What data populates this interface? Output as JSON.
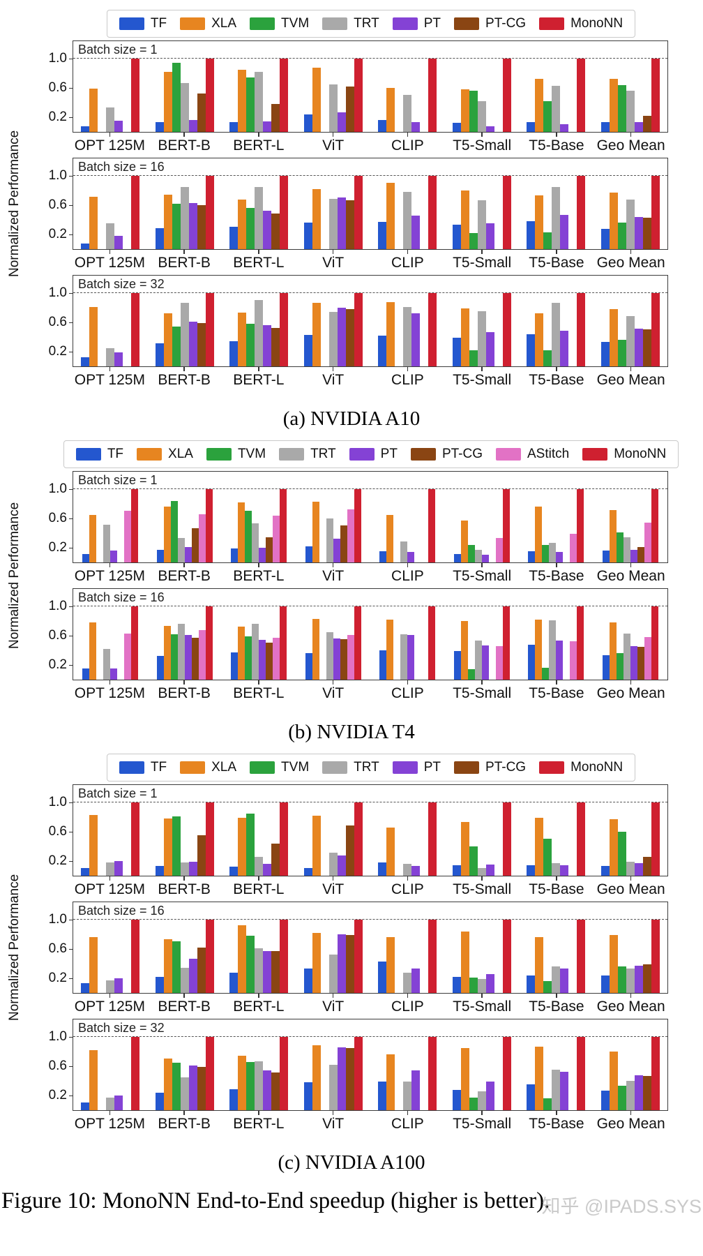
{
  "figure": {
    "caption": "Figure 10: MonoNN End-to-End speedup (higher is better).",
    "watermark": "知乎 @IPADS.SYS"
  },
  "colors": {
    "TF": "#2457cf",
    "XLA": "#e78520",
    "TVM": "#2ba23d",
    "TRT": "#a9a9a9",
    "PT": "#8442d5",
    "PT-CG": "#8a4513",
    "AStitch": "#e272c5",
    "MonoNN": "#cf2030"
  },
  "chart_data": [
    {
      "type": "bar",
      "caption": "(a) NVIDIA A10",
      "ylabel": "Normalized Performance",
      "yticks": [
        0.2,
        0.6,
        1.0
      ],
      "ylim": [
        0,
        1.24
      ],
      "grid_dashed_at": 1.0,
      "legend_position": "top",
      "series_names": [
        "TF",
        "XLA",
        "TVM",
        "TRT",
        "PT",
        "PT-CG",
        "MonoNN"
      ],
      "categories": [
        "OPT 125M",
        "BERT-B",
        "BERT-L",
        "ViT",
        "CLIP",
        "T5-Small",
        "T5-Base",
        "Geo Mean"
      ],
      "panels": [
        {
          "label": "Batch size = 1",
          "series": [
            {
              "name": "TF",
              "values": [
                0.08,
                0.13,
                0.13,
                0.24,
                0.16,
                0.12,
                0.13,
                0.13
              ]
            },
            {
              "name": "XLA",
              "values": [
                0.59,
                0.82,
                0.85,
                0.88,
                0.6,
                0.58,
                0.72,
                0.72
              ]
            },
            {
              "name": "TVM",
              "values": [
                null,
                0.94,
                0.74,
                null,
                null,
                0.56,
                0.42,
                0.64
              ]
            },
            {
              "name": "TRT",
              "values": [
                0.33,
                0.67,
                0.82,
                0.65,
                0.5,
                0.42,
                0.63,
                0.56
              ]
            },
            {
              "name": "PT",
              "values": [
                0.15,
                0.16,
                0.14,
                0.27,
                0.13,
                0.08,
                0.1,
                0.13
              ]
            },
            {
              "name": "PT-CG",
              "values": [
                null,
                0.52,
                0.38,
                0.62,
                null,
                null,
                null,
                0.22
              ]
            },
            {
              "name": "MonoNN",
              "values": [
                1.0,
                1.0,
                1.0,
                1.0,
                1.0,
                1.0,
                1.0,
                1.0
              ]
            }
          ]
        },
        {
          "label": "Batch size = 16",
          "series": [
            {
              "name": "TF",
              "values": [
                0.08,
                0.29,
                0.3,
                0.36,
                0.37,
                0.33,
                0.38,
                0.28
              ]
            },
            {
              "name": "XLA",
              "values": [
                0.71,
                0.74,
                0.68,
                0.82,
                0.9,
                0.8,
                0.73,
                0.77
              ]
            },
            {
              "name": "TVM",
              "values": [
                null,
                0.62,
                0.56,
                null,
                null,
                0.22,
                0.23,
                0.36
              ]
            },
            {
              "name": "TRT",
              "values": [
                0.35,
                0.85,
                0.85,
                0.69,
                0.78,
                0.67,
                0.85,
                0.68
              ]
            },
            {
              "name": "PT",
              "values": [
                0.18,
                0.63,
                0.52,
                0.7,
                0.46,
                0.35,
                0.47,
                0.44
              ]
            },
            {
              "name": "PT-CG",
              "values": [
                null,
                0.6,
                0.49,
                0.67,
                null,
                null,
                null,
                0.43
              ]
            },
            {
              "name": "MonoNN",
              "values": [
                1.0,
                1.0,
                1.0,
                1.0,
                1.0,
                1.0,
                1.0,
                1.0
              ]
            }
          ]
        },
        {
          "label": "Batch size = 32",
          "series": [
            {
              "name": "TF",
              "values": [
                0.12,
                0.31,
                0.34,
                0.43,
                0.42,
                0.39,
                0.44,
                0.33
              ]
            },
            {
              "name": "XLA",
              "values": [
                0.81,
                0.72,
                0.73,
                0.87,
                0.88,
                0.79,
                0.72,
                0.78
              ]
            },
            {
              "name": "TVM",
              "values": [
                null,
                0.54,
                0.58,
                null,
                null,
                0.22,
                0.22,
                0.36
              ]
            },
            {
              "name": "TRT",
              "values": [
                0.25,
                0.87,
                0.9,
                0.74,
                0.81,
                0.75,
                0.87,
                0.69
              ]
            },
            {
              "name": "PT",
              "values": [
                0.19,
                0.61,
                0.56,
                0.8,
                0.72,
                0.47,
                0.49,
                0.51
              ]
            },
            {
              "name": "PT-CG",
              "values": [
                null,
                0.59,
                0.52,
                0.78,
                null,
                null,
                null,
                0.5
              ]
            },
            {
              "name": "MonoNN",
              "values": [
                1.0,
                1.0,
                1.0,
                1.0,
                1.0,
                1.0,
                1.0,
                1.0
              ]
            }
          ]
        }
      ]
    },
    {
      "type": "bar",
      "caption": "(b) NVIDIA T4",
      "ylabel": "Normalized Performance",
      "yticks": [
        0.2,
        0.6,
        1.0
      ],
      "ylim": [
        0,
        1.24
      ],
      "grid_dashed_at": 1.0,
      "legend_position": "top",
      "series_names": [
        "TF",
        "XLA",
        "TVM",
        "TRT",
        "PT",
        "PT-CG",
        "AStitch",
        "MonoNN"
      ],
      "categories": [
        "OPT 125M",
        "BERT-B",
        "BERT-L",
        "ViT",
        "CLIP",
        "T5-Small",
        "T5-Base",
        "Geo Mean"
      ],
      "panels": [
        {
          "label": "Batch size = 1",
          "series": [
            {
              "name": "TF",
              "values": [
                0.11,
                0.17,
                0.19,
                0.22,
                0.15,
                0.11,
                0.15,
                0.16
              ]
            },
            {
              "name": "XLA",
              "values": [
                0.65,
                0.76,
                0.82,
                0.83,
                0.65,
                0.57,
                0.76,
                0.71
              ]
            },
            {
              "name": "TVM",
              "values": [
                null,
                0.84,
                0.7,
                null,
                null,
                0.24,
                0.24,
                0.41
              ]
            },
            {
              "name": "TRT",
              "values": [
                0.51,
                0.33,
                0.53,
                0.6,
                0.29,
                0.17,
                0.27,
                0.34
              ]
            },
            {
              "name": "PT",
              "values": [
                0.16,
                0.21,
                0.2,
                0.32,
                0.14,
                0.1,
                0.14,
                0.17
              ]
            },
            {
              "name": "PT-CG",
              "values": [
                null,
                0.47,
                0.34,
                0.5,
                null,
                null,
                null,
                0.21
              ]
            },
            {
              "name": "AStitch",
              "values": [
                0.7,
                0.66,
                0.64,
                0.72,
                null,
                0.33,
                0.39,
                0.54
              ]
            },
            {
              "name": "MonoNN",
              "values": [
                1.0,
                1.0,
                1.0,
                1.0,
                1.0,
                1.0,
                1.0,
                1.0
              ]
            }
          ]
        },
        {
          "label": "Batch size = 16",
          "series": [
            {
              "name": "TF",
              "values": [
                0.15,
                0.32,
                0.37,
                0.36,
                0.4,
                0.39,
                0.48,
                0.33
              ]
            },
            {
              "name": "XLA",
              "values": [
                0.78,
                0.73,
                0.72,
                0.83,
                0.82,
                0.8,
                0.82,
                0.78
              ]
            },
            {
              "name": "TVM",
              "values": [
                null,
                0.62,
                0.59,
                null,
                null,
                0.14,
                0.16,
                0.36
              ]
            },
            {
              "name": "TRT",
              "values": [
                0.42,
                0.76,
                0.76,
                0.65,
                0.62,
                0.53,
                0.81,
                0.63
              ]
            },
            {
              "name": "PT",
              "values": [
                0.15,
                0.61,
                0.54,
                0.56,
                0.61,
                0.47,
                0.53,
                0.46
              ]
            },
            {
              "name": "PT-CG",
              "values": [
                null,
                0.57,
                0.5,
                0.55,
                null,
                null,
                null,
                0.45
              ]
            },
            {
              "name": "AStitch",
              "values": [
                0.63,
                0.68,
                0.57,
                0.61,
                null,
                0.46,
                0.52,
                0.58
              ]
            },
            {
              "name": "MonoNN",
              "values": [
                1.0,
                1.0,
                1.0,
                1.0,
                1.0,
                1.0,
                1.0,
                1.0
              ]
            }
          ]
        }
      ]
    },
    {
      "type": "bar",
      "caption": "(c) NVIDIA A100",
      "ylabel": "Normalized Performance",
      "yticks": [
        0.2,
        0.6,
        1.0
      ],
      "ylim": [
        0,
        1.24
      ],
      "grid_dashed_at": 1.0,
      "legend_position": "top",
      "series_names": [
        "TF",
        "XLA",
        "TVM",
        "TRT",
        "PT",
        "PT-CG",
        "MonoNN"
      ],
      "categories": [
        "OPT 125M",
        "BERT-B",
        "BERT-L",
        "ViT",
        "CLIP",
        "T5-Small",
        "T5-Base",
        "Geo Mean"
      ],
      "panels": [
        {
          "label": "Batch size = 1",
          "series": [
            {
              "name": "TF",
              "values": [
                0.1,
                0.13,
                0.12,
                0.1,
                0.18,
                0.14,
                0.14,
                0.13
              ]
            },
            {
              "name": "XLA",
              "values": [
                0.83,
                0.78,
                0.79,
                0.82,
                0.66,
                0.73,
                0.79,
                0.77
              ]
            },
            {
              "name": "TVM",
              "values": [
                null,
                0.81,
                0.85,
                null,
                null,
                0.4,
                0.5,
                0.6
              ]
            },
            {
              "name": "TRT",
              "values": [
                0.18,
                0.18,
                0.26,
                0.31,
                0.16,
                0.1,
                0.17,
                0.19
              ]
            },
            {
              "name": "PT",
              "values": [
                0.2,
                0.19,
                0.16,
                0.28,
                0.13,
                0.15,
                0.14,
                0.17
              ]
            },
            {
              "name": "PT-CG",
              "values": [
                null,
                0.55,
                0.44,
                0.69,
                null,
                null,
                null,
                0.26
              ]
            },
            {
              "name": "MonoNN",
              "values": [
                1.0,
                1.0,
                1.0,
                1.0,
                1.0,
                1.0,
                1.0,
                1.0
              ]
            }
          ]
        },
        {
          "label": "Batch size = 16",
          "series": [
            {
              "name": "TF",
              "values": [
                0.13,
                0.22,
                0.28,
                0.33,
                0.43,
                0.22,
                0.24,
                0.24
              ]
            },
            {
              "name": "XLA",
              "values": [
                0.76,
                0.73,
                0.92,
                0.82,
                0.76,
                0.84,
                0.76,
                0.79
              ]
            },
            {
              "name": "TVM",
              "values": [
                null,
                0.7,
                0.78,
                null,
                null,
                0.21,
                0.16,
                0.36
              ]
            },
            {
              "name": "TRT",
              "values": [
                0.17,
                0.34,
                0.61,
                0.52,
                0.28,
                0.19,
                0.36,
                0.33
              ]
            },
            {
              "name": "PT",
              "values": [
                0.2,
                0.47,
                0.57,
                0.8,
                0.33,
                0.26,
                0.33,
                0.37
              ]
            },
            {
              "name": "PT-CG",
              "values": [
                null,
                0.62,
                0.57,
                0.79,
                null,
                null,
                null,
                0.39
              ]
            },
            {
              "name": "MonoNN",
              "values": [
                1.0,
                1.0,
                1.0,
                1.0,
                1.0,
                1.0,
                1.0,
                1.0
              ]
            }
          ]
        },
        {
          "label": "Batch size = 32",
          "series": [
            {
              "name": "TF",
              "values": [
                0.1,
                0.24,
                0.29,
                0.38,
                0.39,
                0.28,
                0.35,
                0.27
              ]
            },
            {
              "name": "XLA",
              "values": [
                0.82,
                0.7,
                0.74,
                0.89,
                0.76,
                0.85,
                0.87,
                0.8
              ]
            },
            {
              "name": "TVM",
              "values": [
                null,
                0.65,
                0.66,
                null,
                null,
                0.17,
                0.16,
                0.33
              ]
            },
            {
              "name": "TRT",
              "values": [
                0.17,
                0.45,
                0.67,
                0.62,
                0.39,
                0.26,
                0.55,
                0.4
              ]
            },
            {
              "name": "PT",
              "values": [
                0.2,
                0.61,
                0.54,
                0.86,
                0.54,
                0.39,
                0.52,
                0.48
              ]
            },
            {
              "name": "PT-CG",
              "values": [
                null,
                0.59,
                0.51,
                0.85,
                null,
                null,
                null,
                0.47
              ]
            },
            {
              "name": "MonoNN",
              "values": [
                1.0,
                1.0,
                1.0,
                1.0,
                1.0,
                1.0,
                1.0,
                1.0
              ]
            }
          ]
        }
      ]
    }
  ]
}
